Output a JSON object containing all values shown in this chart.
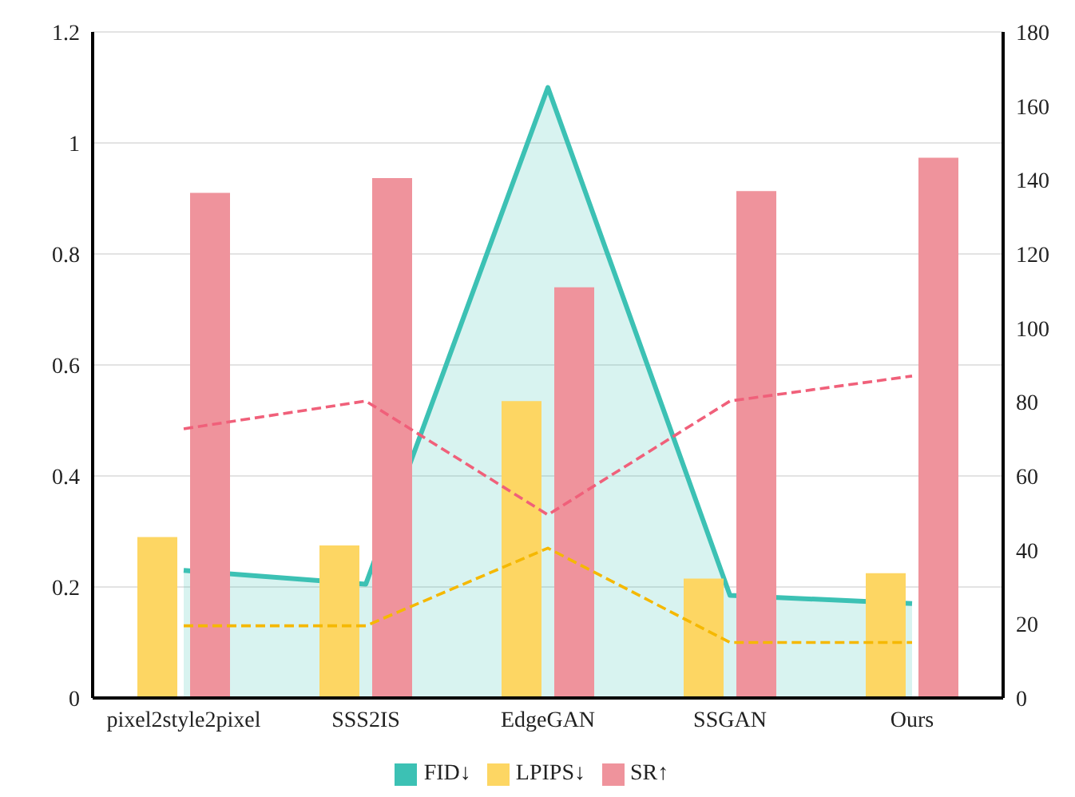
{
  "chart_data": {
    "type": "bar",
    "categories": [
      "pixel2style2pixel",
      "SSS2IS",
      "EdgeGAN",
      "SSGAN",
      "Ours"
    ],
    "series": [
      {
        "name": "FID↓",
        "type": "area",
        "color": "#3cc1b4",
        "values": [
          0.23,
          0.205,
          1.1,
          0.185,
          0.17
        ]
      },
      {
        "name": "LPIPS↓",
        "color": "#fdd663",
        "values": [
          0.29,
          0.275,
          0.535,
          0.215,
          0.225
        ]
      },
      {
        "name": "SR↑",
        "color": "#ef939c",
        "axis": "y2",
        "values": [
          136.5,
          140.5,
          111,
          137,
          146
        ]
      },
      {
        "type": "line",
        "color": "#f5b800",
        "line_style": "dashed",
        "values": [
          0.13,
          0.13,
          0.27,
          0.1,
          0.1
        ]
      },
      {
        "type": "line",
        "color": "#f0607a",
        "line_style": "dashed",
        "values": [
          0.485,
          0.535,
          0.33,
          0.535,
          0.58
        ]
      }
    ],
    "ylim": [
      0,
      1.2
    ],
    "yticks": [
      0,
      0.2,
      0.4,
      0.6,
      0.8,
      1,
      1.2
    ],
    "y2lim": [
      0,
      180
    ],
    "y2ticks": [
      0,
      20,
      40,
      60,
      80,
      100,
      120,
      140,
      160,
      180
    ],
    "grid": "y",
    "legend": "bottom"
  }
}
